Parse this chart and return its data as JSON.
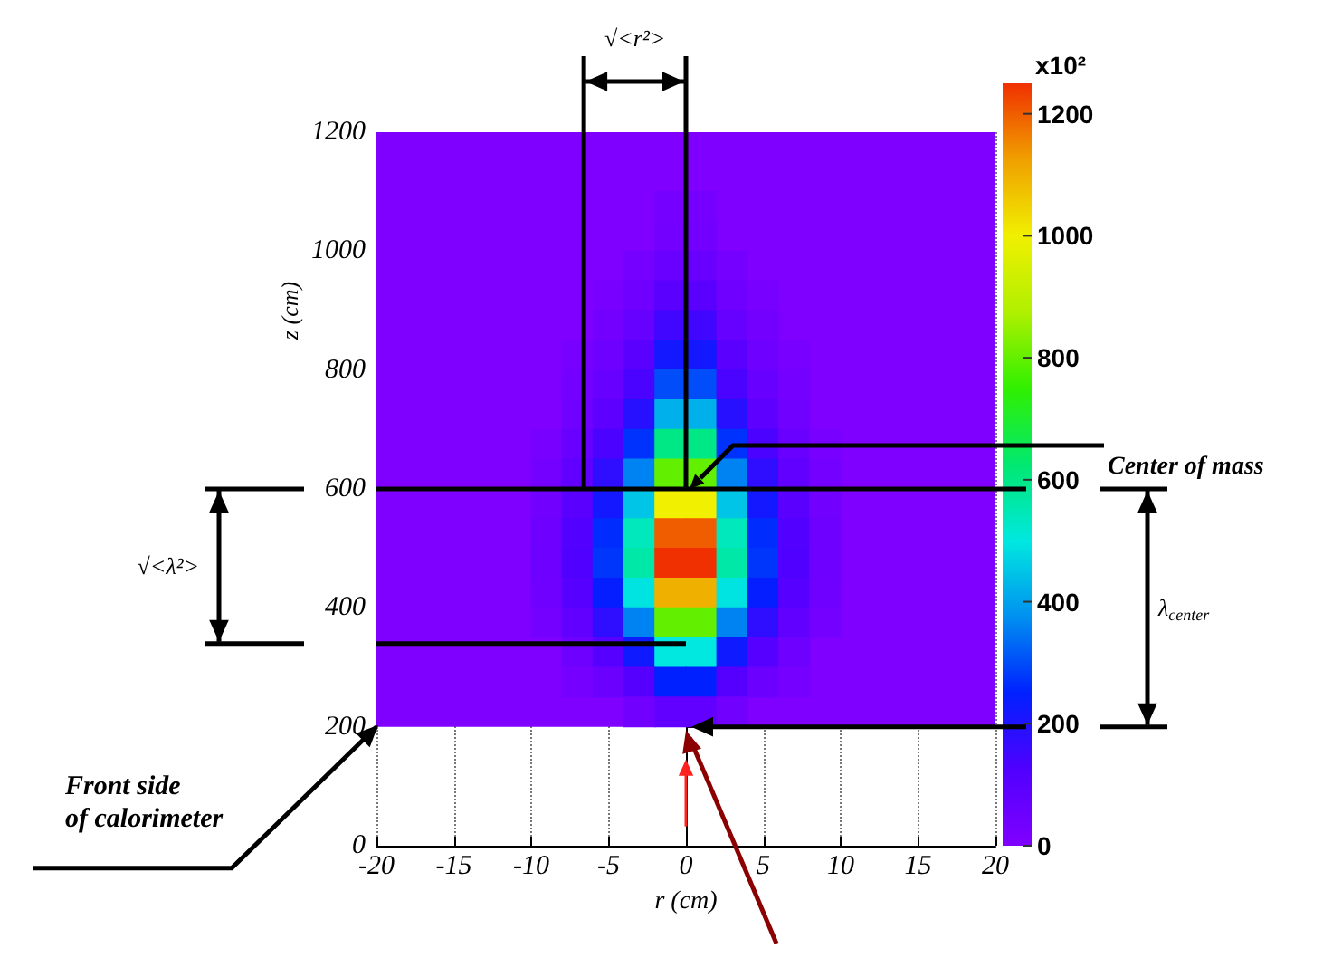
{
  "chart_data": {
    "type": "scatter",
    "marker": "square",
    "xlabel": "r (cm)",
    "ylabel": "z (cm)",
    "clabel": "x10²",
    "x": [
      -1,
      1,
      -1,
      1,
      -3,
      -1,
      1,
      3,
      -5,
      -3,
      -1,
      1,
      3,
      5,
      -5,
      -3,
      -1,
      1,
      3,
      5,
      -7,
      -5,
      -3,
      -1,
      1,
      3,
      5,
      7,
      -7,
      -5,
      -3,
      -1,
      1,
      3,
      5,
      7,
      -7,
      -5,
      -3,
      -1,
      1,
      3,
      5,
      7,
      -9,
      -7,
      -5,
      -3,
      -1,
      1,
      3,
      5,
      7,
      9,
      -9,
      -7,
      -5,
      -3,
      -1,
      1,
      3,
      5,
      7,
      9,
      -9,
      -7,
      -5,
      -3,
      -1,
      1,
      3,
      5,
      7,
      9,
      -9,
      -7,
      -5,
      -3,
      -1,
      1,
      3,
      5,
      7,
      9,
      -9,
      -7,
      -5,
      -3,
      -1,
      1,
      3,
      5,
      7,
      9,
      -9,
      -7,
      -5,
      -3,
      -1,
      1,
      3,
      5,
      7,
      9,
      -9,
      -7,
      -5,
      -3,
      -1,
      1,
      3,
      5,
      7,
      9,
      -7,
      -5,
      -3,
      -1,
      1,
      3,
      5,
      7,
      -7,
      -5,
      -3,
      -1,
      1,
      3,
      5,
      7,
      -3,
      -1,
      1,
      3
    ],
    "values": [
      1075,
      1075,
      1025,
      1025,
      975,
      975,
      975,
      975,
      925,
      925,
      925,
      925,
      925,
      925,
      875,
      875,
      875,
      875,
      875,
      875,
      825,
      825,
      825,
      825,
      825,
      825,
      825,
      825,
      775,
      775,
      775,
      775,
      775,
      775,
      775,
      775,
      725,
      725,
      725,
      725,
      725,
      725,
      725,
      725,
      675,
      675,
      675,
      675,
      675,
      675,
      675,
      675,
      675,
      675,
      625,
      625,
      625,
      625,
      625,
      625,
      625,
      625,
      625,
      625,
      575,
      575,
      575,
      575,
      575,
      575,
      575,
      575,
      575,
      575,
      525,
      525,
      525,
      525,
      525,
      525,
      525,
      525,
      525,
      525,
      475,
      475,
      475,
      475,
      475,
      475,
      475,
      475,
      475,
      475,
      425,
      425,
      425,
      425,
      425,
      425,
      425,
      425,
      425,
      425,
      375,
      375,
      375,
      375,
      375,
      375,
      375,
      375,
      375,
      375,
      325,
      325,
      325,
      325,
      325,
      325,
      325,
      325,
      275,
      275,
      275,
      275,
      275,
      275,
      275,
      275,
      225,
      225,
      225,
      225
    ],
    "cvalues": [
      25,
      25,
      35,
      35,
      27,
      60,
      60,
      27,
      22,
      45,
      100,
      100,
      45,
      22,
      33,
      68,
      150,
      150,
      68,
      33,
      22,
      48,
      99,
      220,
      220,
      99,
      48,
      22,
      30,
      66,
      135,
      300,
      300,
      135,
      66,
      30,
      42,
      92,
      189,
      420,
      420,
      189,
      92,
      42,
      24,
      60,
      132,
      270,
      600,
      600,
      270,
      132,
      60,
      24,
      32,
      80,
      176,
      360,
      800,
      800,
      360,
      176,
      80,
      32,
      40,
      100,
      220,
      450,
      1000,
      1000,
      450,
      220,
      100,
      40,
      48,
      120,
      264,
      540,
      1200,
      1200,
      540,
      264,
      120,
      48,
      50,
      125,
      275,
      562,
      1250,
      1250,
      562,
      275,
      125,
      50,
      44,
      110,
      242,
      495,
      1100,
      1100,
      495,
      242,
      110,
      44,
      32,
      80,
      176,
      360,
      800,
      800,
      360,
      176,
      80,
      32,
      50,
      110,
      225,
      500,
      500,
      225,
      110,
      50,
      25,
      55,
      112,
      250,
      250,
      112,
      55,
      25,
      36,
      80,
      80,
      36
    ],
    "xlim": [
      -20,
      20
    ],
    "ylim": [
      0,
      1200
    ],
    "xticks": [
      -20,
      -15,
      -10,
      -5,
      0,
      5,
      10,
      15,
      20
    ],
    "yticks": [
      0,
      200,
      400,
      600,
      800,
      1000,
      1200
    ],
    "clim": [
      0,
      1250
    ],
    "cticks": [
      0,
      200,
      400,
      600,
      800,
      1000,
      1200
    ],
    "grid": "x",
    "bands": [
      {
        "axis": "y",
        "from": 200,
        "to": 1200,
        "color": "#8000ff"
      }
    ],
    "ref_lines": [
      {
        "axis": "y",
        "value": 600,
        "label": "Center of mass"
      },
      {
        "axis": "y",
        "value": 340
      },
      {
        "axis": "y",
        "value": 200
      },
      {
        "axis": "x",
        "value": -6.6,
        "label": "√<r²>"
      },
      {
        "axis": "x",
        "value": 0
      }
    ],
    "annotations": [
      "Front side\nof calorimeter",
      "√<λ²>",
      "λ$_{center}$"
    ]
  }
}
